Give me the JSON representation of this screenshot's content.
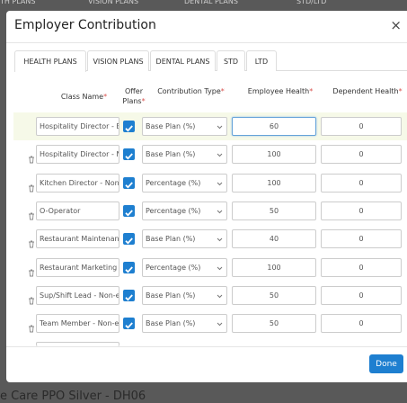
{
  "background": {
    "tabs": [
      "TH PLANS",
      "VISION PLANS",
      "DENTAL PLANS",
      "STD/LTD"
    ],
    "footer_text": "e Care PPO Silver - DH06"
  },
  "modal": {
    "title": "Employer Contribution",
    "close": "×",
    "tabs": [
      "HEALTH PLANS",
      "VISION PLANS",
      "DENTAL PLANS",
      "STD",
      "LTD"
    ],
    "active_tab": 0,
    "required_mark": "*",
    "headers": [
      "Class Name",
      "Offer Plans",
      "Contribution Type",
      "Employee Health",
      "Dependent Health"
    ],
    "rows": [
      {
        "class_name": "Hospitality Director - Exe",
        "offer": true,
        "type": "Base Plan (%)",
        "employee": 60,
        "dependent": 0
      },
      {
        "class_name": "Hospitality Director - No",
        "offer": true,
        "type": "Base Plan (%)",
        "employee": 100,
        "dependent": 0
      },
      {
        "class_name": "Kitchen Director - Non-e",
        "offer": true,
        "type": "Percentage (%)",
        "employee": 100,
        "dependent": 0
      },
      {
        "class_name": "O-Operator",
        "offer": true,
        "type": "Percentage (%)",
        "employee": 50,
        "dependent": 0
      },
      {
        "class_name": "Restaurant Maintenanc",
        "offer": true,
        "type": "Base Plan (%)",
        "employee": 40,
        "dependent": 0
      },
      {
        "class_name": "Restaurant Marketing Di",
        "offer": true,
        "type": "Percentage (%)",
        "employee": 100,
        "dependent": 0
      },
      {
        "class_name": "Sup/Shift Lead - Non-exe",
        "offer": true,
        "type": "Base Plan (%)",
        "employee": 50,
        "dependent": 0
      },
      {
        "class_name": "Team Member - Non-exe",
        "offer": true,
        "type": "Base Plan (%)",
        "employee": 50,
        "dependent": 0
      }
    ],
    "done": "Done"
  }
}
